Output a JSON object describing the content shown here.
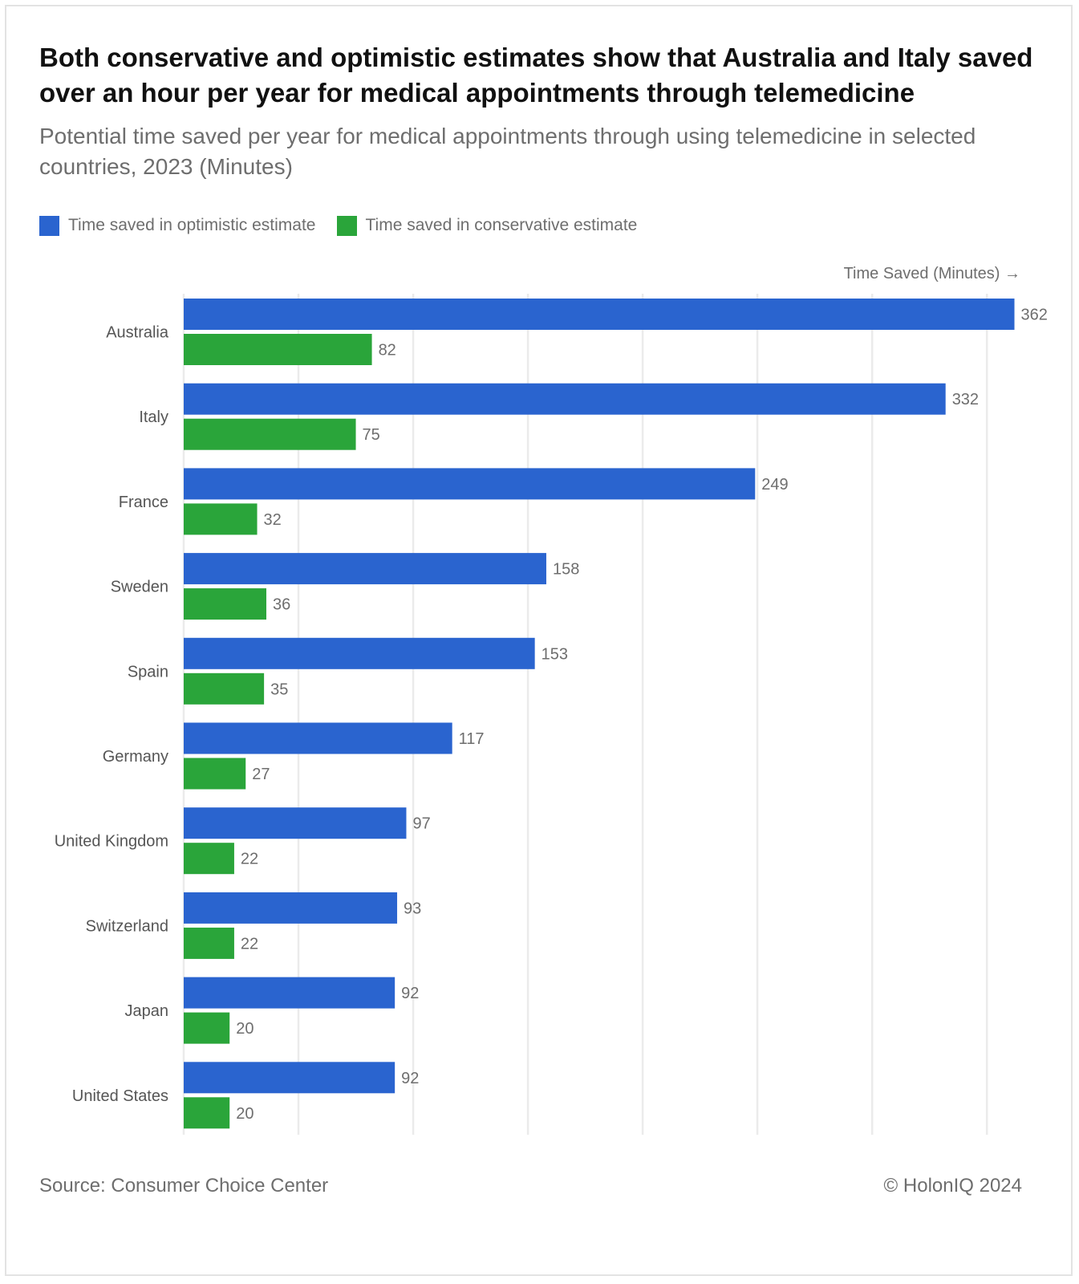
{
  "header": {
    "title": "Both conservative and optimistic estimates show that Australia and Italy saved over an hour per year for medical appointments through telemedicine",
    "subtitle": "Potential time saved per year for medical appointments through using telemedicine in selected countries, 2023 (Minutes)"
  },
  "legend": [
    {
      "label": "Time saved in optimistic estimate",
      "color": "#2a64cf"
    },
    {
      "label": "Time saved in conservative estimate",
      "color": "#2aa53a"
    }
  ],
  "footer": {
    "source": "Source: Consumer Choice Center",
    "copyright": "© HolonIQ 2024"
  },
  "chart_data": {
    "type": "bar",
    "orientation": "horizontal",
    "xlabel": "Time Saved (Minutes) →",
    "xlim": [
      0,
      380
    ],
    "grid": true,
    "legend_position": "top-left",
    "categories": [
      "Australia",
      "Italy",
      "France",
      "Sweden",
      "Spain",
      "Germany",
      "United Kingdom",
      "Switzerland",
      "Japan",
      "United States"
    ],
    "series": [
      {
        "name": "Time saved in optimistic estimate",
        "color": "#2a64cf",
        "values": [
          362,
          332,
          249,
          158,
          153,
          117,
          97,
          93,
          92,
          92
        ]
      },
      {
        "name": "Time saved in conservative estimate",
        "color": "#2aa53a",
        "values": [
          82,
          75,
          32,
          36,
          35,
          27,
          22,
          22,
          20,
          20
        ]
      }
    ]
  }
}
